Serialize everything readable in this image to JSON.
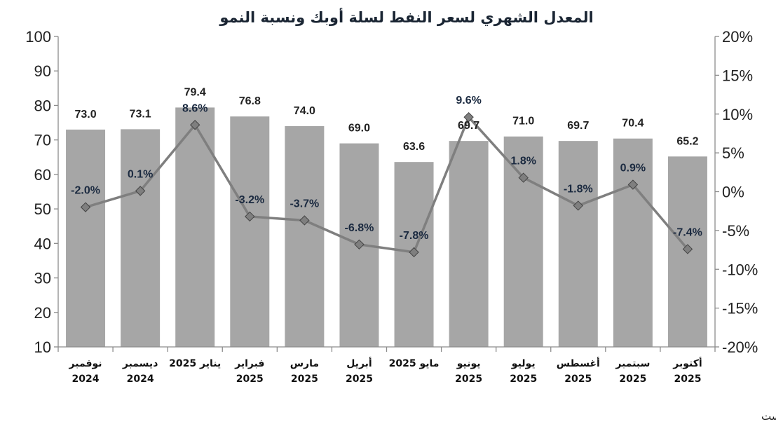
{
  "chart_data": {
    "type": "bar",
    "title": "المعدل الشهري لسعر النفط لسلة أوبك ونسبة النمو",
    "categories": [
      [
        "نوفمبر",
        "2024"
      ],
      [
        "ديسمبر",
        "2024"
      ],
      [
        "يناير 2025",
        ""
      ],
      [
        "فبراير",
        "2025"
      ],
      [
        "مارس",
        "2025"
      ],
      [
        "أبريل",
        "2025"
      ],
      [
        "مايو 2025",
        ""
      ],
      [
        "يونيو",
        "2025"
      ],
      [
        "يوليو",
        "2025"
      ],
      [
        "أغسطس",
        "2025"
      ],
      [
        "سبتمبر",
        "2025"
      ],
      [
        "أكتوبر",
        "2025"
      ]
    ],
    "series": [
      {
        "name": "price",
        "type": "bar",
        "axis": "left",
        "values": [
          73.0,
          73.1,
          79.4,
          76.8,
          74.0,
          69.0,
          63.6,
          69.7,
          71.0,
          69.7,
          70.4,
          65.2
        ],
        "labels": [
          "73.0",
          "73.1",
          "79.4",
          "76.8",
          "74.0",
          "69.0",
          "63.6",
          "69.7",
          "71.0",
          "69.7",
          "70.4",
          "65.2"
        ],
        "color": "#a6a6a6"
      },
      {
        "name": "growth",
        "type": "line",
        "axis": "right",
        "values": [
          -2.0,
          0.1,
          8.6,
          -3.2,
          -3.7,
          -6.8,
          -7.8,
          9.6,
          1.8,
          -1.8,
          0.9,
          -7.4
        ],
        "labels": [
          "-2.0%",
          "0.1%",
          "8.6%",
          "-3.2%",
          "-3.7%",
          "-6.8%",
          "-7.8%",
          "9.6%",
          "1.8%",
          "-1.8%",
          "0.9%",
          "-7.4%"
        ],
        "color": "#7f7f7f",
        "marker_color": "#7f7f7f"
      }
    ],
    "left_axis": {
      "range": [
        10,
        100
      ],
      "ticks": [
        10,
        20,
        30,
        40,
        50,
        60,
        70,
        80,
        90,
        100
      ],
      "tick_labels": [
        "10",
        "20",
        "30",
        "40",
        "50",
        "60",
        "70",
        "80",
        "90",
        "100"
      ]
    },
    "right_axis": {
      "range": [
        -20,
        20
      ],
      "ticks": [
        -20,
        -15,
        -10,
        -5,
        0,
        5,
        10,
        15,
        20
      ],
      "tick_labels": [
        "-20%",
        "-15%",
        "-10%",
        "-5%",
        "0%",
        "5%",
        "10%",
        "15%",
        "20%"
      ]
    },
    "grid": false,
    "source": "المصدر: بلومبرج، EIA، بحوث كامكو إنفست"
  }
}
